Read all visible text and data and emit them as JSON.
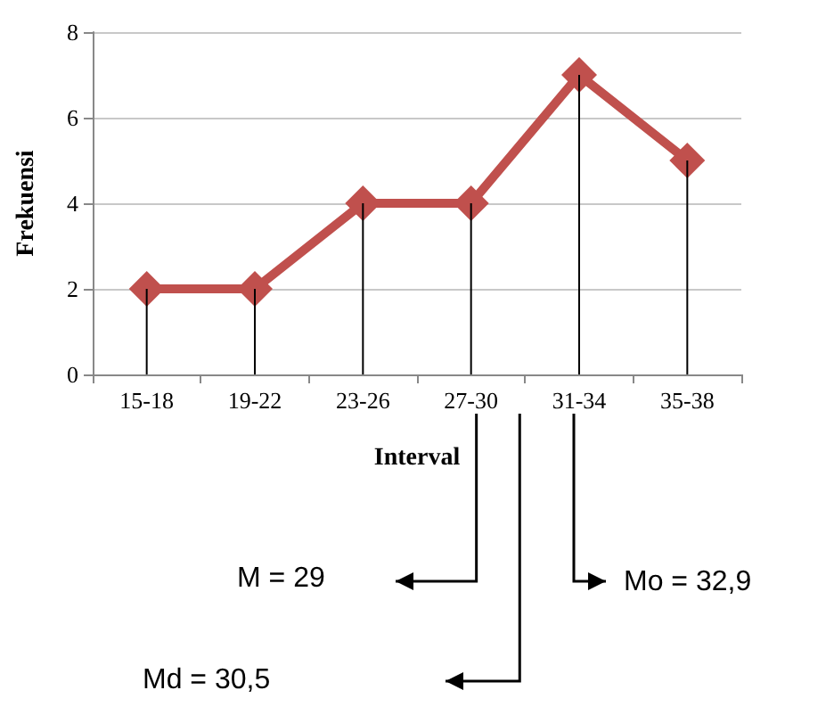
{
  "chart_data": {
    "type": "line",
    "xlabel": "Interval",
    "ylabel": "Frekuensi",
    "categories": [
      "15-18",
      "19-22",
      "23-26",
      "27-30",
      "31-34",
      "35-38"
    ],
    "series": [
      {
        "color": "#c0504d",
        "values": [
          2,
          2,
          4,
          4,
          7,
          5
        ]
      },
      {
        "type": "bar",
        "color": "#000000",
        "values": [
          2,
          2,
          4,
          4,
          7,
          5
        ]
      }
    ],
    "ylim": [
      0,
      8
    ],
    "yticks": [
      0,
      2,
      4,
      6,
      8
    ],
    "grid": "y",
    "marker": "diamond",
    "line_style": "solid",
    "annotations": [
      "M = 29",
      "Md = 30,5",
      "Mo = 32,9"
    ]
  }
}
